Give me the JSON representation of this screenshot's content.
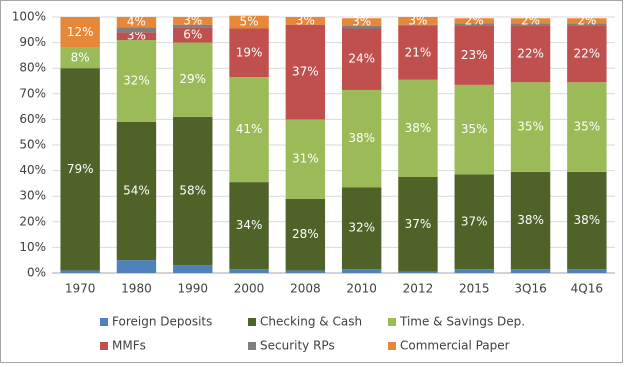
{
  "chart_data": {
    "type": "stacked_bar",
    "categories": [
      "1970",
      "1980",
      "1990",
      "2000",
      "2008",
      "2010",
      "2012",
      "2015",
      "3Q16",
      "4Q16"
    ],
    "series": [
      {
        "name": "Foreign Deposits",
        "color": "#4f81bd",
        "values": [
          1,
          5,
          3,
          1.5,
          1,
          1.5,
          0.5,
          1.5,
          1.5,
          1.5
        ]
      },
      {
        "name": "Checking & Cash",
        "color": "#4f6228",
        "values": [
          79,
          54,
          58,
          34,
          28,
          32,
          37,
          37,
          38,
          38
        ],
        "value_labels": [
          "79%",
          "54%",
          "58%",
          "34%",
          "28%",
          "32%",
          "37%",
          "37%",
          "38%",
          "38%"
        ]
      },
      {
        "name": "Time & Savings Dep.",
        "color": "#9bbb59",
        "values": [
          8,
          32,
          29,
          41,
          31,
          38,
          38,
          35,
          35,
          35
        ],
        "value_labels": [
          "8%",
          "32%",
          "29%",
          "41%",
          "31%",
          "38%",
          "38%",
          "35%",
          "35%",
          "35%"
        ]
      },
      {
        "name": "MMFs",
        "color": "#c0504d",
        "values": [
          0,
          3,
          6,
          19,
          37,
          24,
          21,
          23,
          22,
          22
        ],
        "value_labels": [
          null,
          "3%",
          "6%",
          "19%",
          "37%",
          "24%",
          "21%",
          "23%",
          "22%",
          "22%"
        ]
      },
      {
        "name": "Security RPs",
        "color": "#7f7f7f",
        "values": [
          0,
          2,
          1,
          0,
          0,
          1,
          0.5,
          1,
          1,
          1
        ]
      },
      {
        "name": "Commercial Paper",
        "color": "#e6873a",
        "values": [
          12,
          4,
          3,
          5,
          3,
          3,
          3,
          2,
          2,
          2
        ],
        "value_labels": [
          "12%",
          "4%",
          "3%",
          "5%",
          "3%",
          "3%",
          "3%",
          "2%",
          "2%",
          "2%"
        ]
      }
    ],
    "ylim": [
      0,
      100
    ],
    "yticks": [
      {
        "value": 0,
        "label": "0%"
      },
      {
        "value": 10,
        "label": "10%"
      },
      {
        "value": 20,
        "label": "20%"
      },
      {
        "value": 30,
        "label": "30%"
      },
      {
        "value": 40,
        "label": "40%"
      },
      {
        "value": 50,
        "label": "50%"
      },
      {
        "value": 60,
        "label": "60%"
      },
      {
        "value": 70,
        "label": "70%"
      },
      {
        "value": 80,
        "label": "80%"
      },
      {
        "value": 90,
        "label": "90%"
      },
      {
        "value": 100,
        "label": "100%"
      }
    ],
    "grid": true
  }
}
